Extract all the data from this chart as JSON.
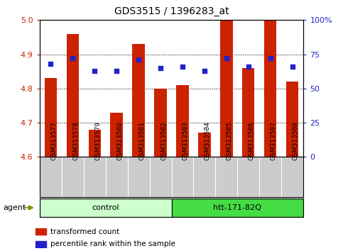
{
  "title": "GDS3515 / 1396283_at",
  "samples": [
    "GSM313577",
    "GSM313578",
    "GSM313579",
    "GSM313580",
    "GSM313581",
    "GSM313582",
    "GSM313583",
    "GSM313584",
    "GSM313585",
    "GSM313586",
    "GSM313587",
    "GSM313588"
  ],
  "bar_values": [
    4.83,
    4.96,
    4.68,
    4.73,
    4.93,
    4.8,
    4.81,
    4.67,
    5.0,
    4.86,
    5.0,
    4.82
  ],
  "percentile_values": [
    68,
    72,
    63,
    63,
    71,
    65,
    66,
    63,
    72,
    66,
    72,
    66
  ],
  "ylim_left": [
    4.6,
    5.0
  ],
  "ylim_right": [
    0,
    100
  ],
  "yticks_left": [
    4.6,
    4.7,
    4.8,
    4.9,
    5.0
  ],
  "yticks_right": [
    0,
    25,
    50,
    75,
    100
  ],
  "yticklabels_right": [
    "0",
    "25",
    "50",
    "75",
    "100%"
  ],
  "bar_color": "#CC2200",
  "dot_color": "#2222CC",
  "bar_bottom": 4.6,
  "bar_width": 0.55,
  "control_n": 6,
  "htt_n": 6,
  "control_label": "control",
  "htt_label": "htt-171-82Q",
  "agent_label": "agent",
  "legend_bar_label": "transformed count",
  "legend_dot_label": "percentile rank within the sample",
  "bg_color": "#FFFFFF",
  "plot_bg_color": "#FFFFFF",
  "xlabel_area_color": "#CCCCCC",
  "control_bg": "#CCFFCC",
  "htt_bg": "#44DD44",
  "tick_label_color_left": "#CC2200",
  "tick_label_color_right": "#2222CC",
  "title_fontsize": 10,
  "tick_fontsize": 8,
  "label_fontsize": 6.5,
  "legend_fontsize": 7.5,
  "group_fontsize": 8
}
